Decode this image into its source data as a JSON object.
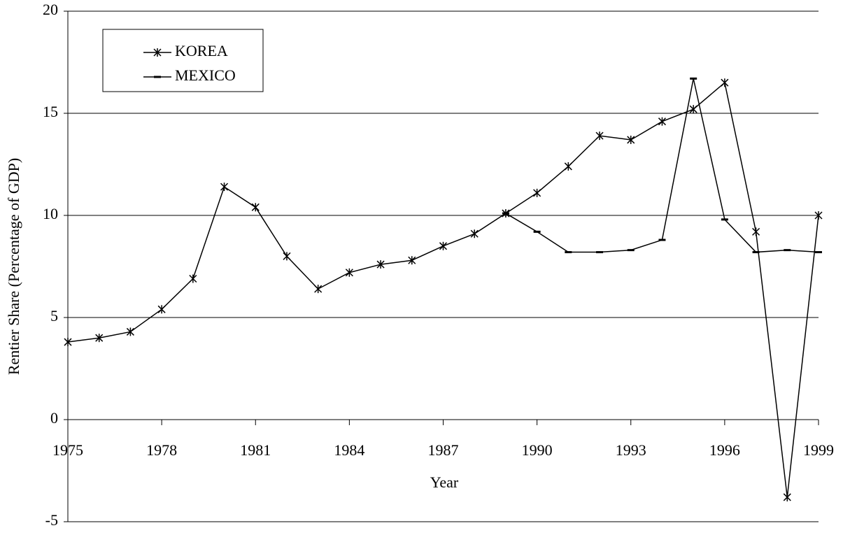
{
  "chart_data": {
    "type": "line",
    "xlabel": "Year",
    "ylabel": "Rentier Share (Percentage of GDP)",
    "x": [
      1975,
      1976,
      1977,
      1978,
      1979,
      1980,
      1981,
      1982,
      1983,
      1984,
      1985,
      1986,
      1987,
      1988,
      1989,
      1990,
      1991,
      1992,
      1993,
      1994,
      1995,
      1996,
      1997,
      1998,
      1999
    ],
    "series": [
      {
        "name": "KOREA",
        "color": "#000000",
        "marker": "asterisk",
        "values": [
          3.8,
          4.0,
          4.3,
          5.4,
          6.9,
          11.4,
          10.4,
          8.0,
          6.4,
          7.2,
          7.6,
          7.8,
          8.5,
          9.1,
          10.1,
          11.1,
          12.4,
          13.9,
          13.7,
          14.6,
          15.2,
          16.5,
          9.2,
          -3.8,
          10.0
        ]
      },
      {
        "name": "MEXICO",
        "color": "#000000",
        "marker": "dash",
        "values": [
          null,
          null,
          null,
          null,
          null,
          null,
          null,
          null,
          null,
          null,
          null,
          null,
          null,
          null,
          10.1,
          9.2,
          8.2,
          8.2,
          8.3,
          8.8,
          16.7,
          9.8,
          8.2,
          8.3,
          8.2
        ]
      }
    ],
    "xlim": [
      1975,
      1999
    ],
    "xticks": [
      1975,
      1978,
      1981,
      1984,
      1987,
      1990,
      1993,
      1996,
      1999
    ],
    "ylim": [
      -5,
      20
    ],
    "yticks": [
      -5,
      0,
      5,
      10,
      15,
      20
    ],
    "grid": true,
    "legend": "upper left"
  }
}
